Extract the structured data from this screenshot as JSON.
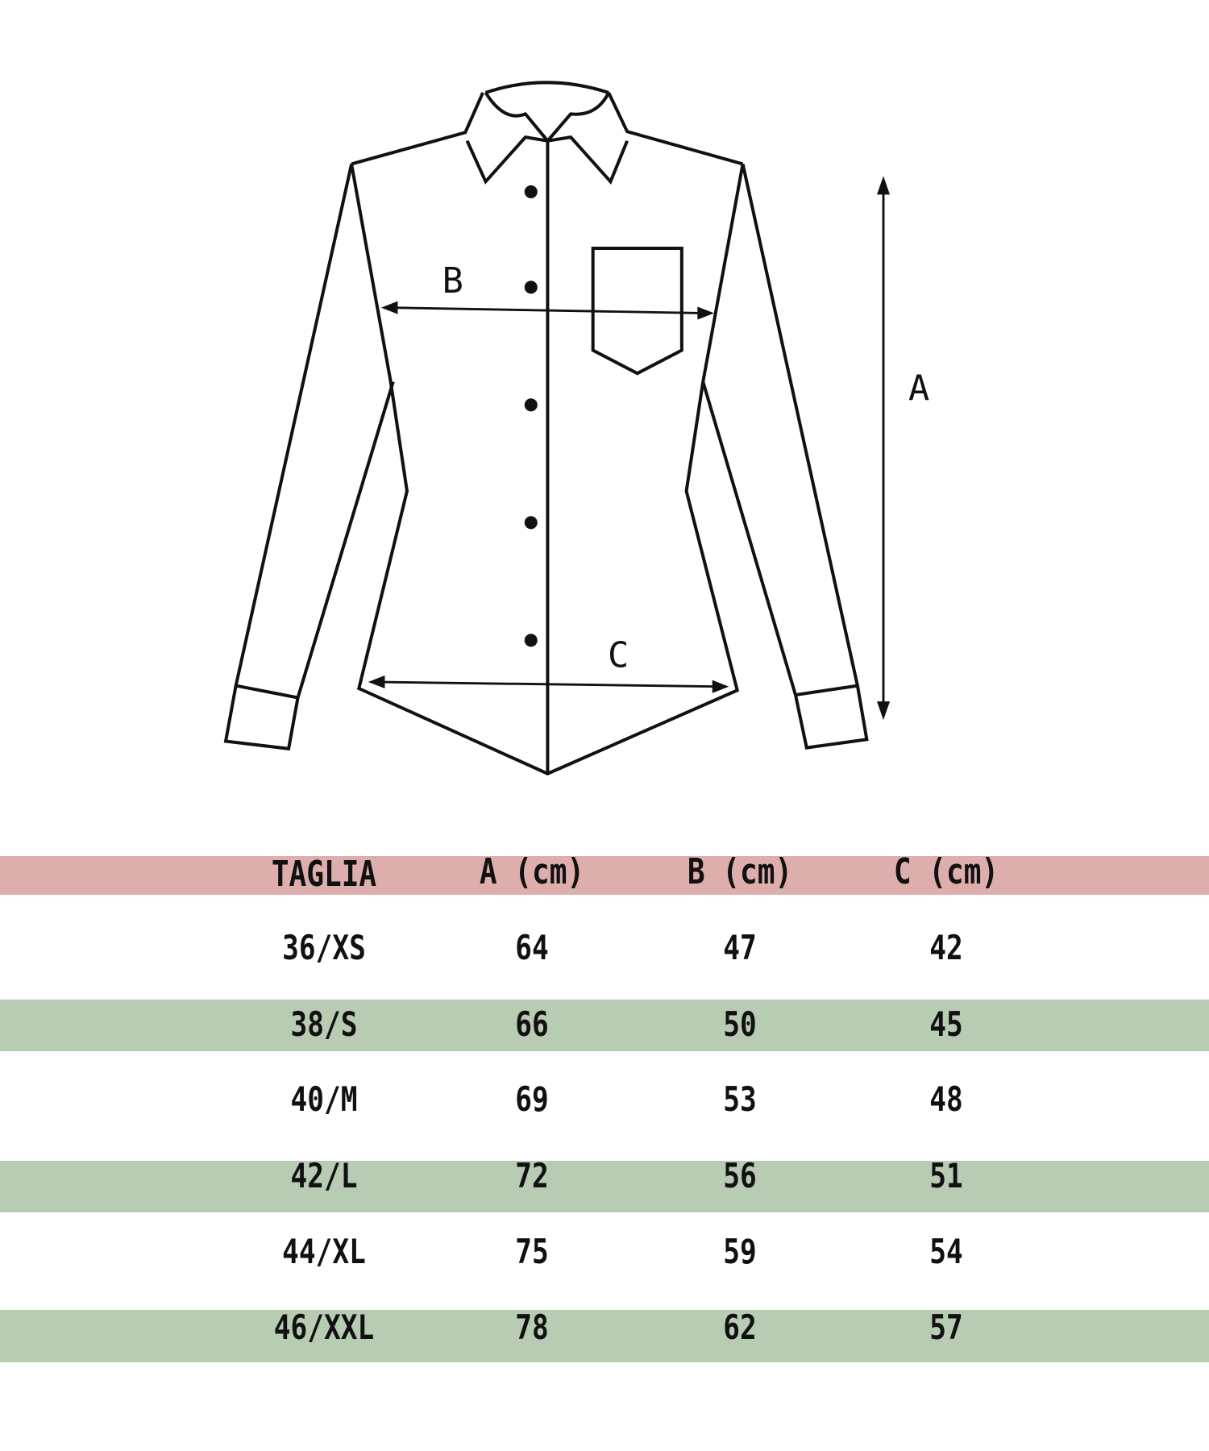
{
  "diagram": {
    "labels": {
      "a": "A",
      "b": "B",
      "c": "C"
    }
  },
  "table": {
    "headers": [
      "TAGLIA",
      "A (cm)",
      "B (cm)",
      "C (cm)"
    ],
    "rows": [
      [
        "36/XS",
        "64",
        "47",
        "42"
      ],
      [
        "38/S",
        "66",
        "50",
        "45"
      ],
      [
        "40/M",
        "69",
        "53",
        "48"
      ],
      [
        "42/L",
        "72",
        "56",
        "51"
      ],
      [
        "44/XL",
        "75",
        "59",
        "54"
      ],
      [
        "46/XXL",
        "78",
        "62",
        "57"
      ]
    ]
  },
  "colors": {
    "header_band": "#ddaeab",
    "row_band": "#b8cbb3",
    "line": "#111111"
  }
}
